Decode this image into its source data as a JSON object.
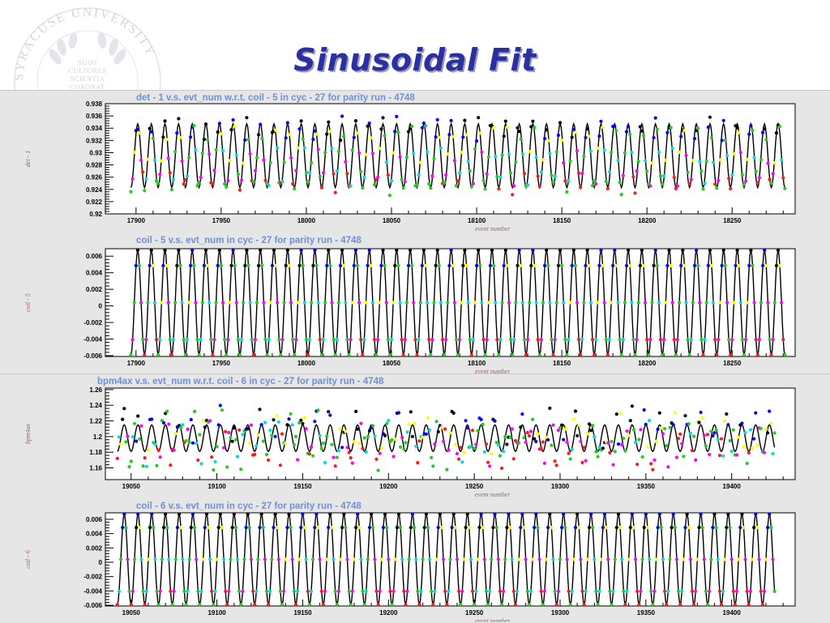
{
  "slide": {
    "title": "Sinusoidal Fit"
  },
  "logo": {
    "university_text": "SYRACUSE UNIVERSITY",
    "motto_lines": [
      "SUOS",
      "CULTORES",
      "SCIENTIA",
      "CORONAT"
    ]
  },
  "colors": {
    "title_text": "#2b2fa0",
    "chart_title": "#6f8fd8",
    "axis_label": "#a06060",
    "fit_line": "#000000",
    "marker_colors": [
      "#000000",
      "#ff1a1a",
      "#22cc22",
      "#0000ff",
      "#ffff00",
      "#ff00ff",
      "#00dddd"
    ]
  },
  "chart_data": [
    {
      "type": "scatter",
      "title": "det - 1 v.s. evt_num w.r.t. coil - 5 in cyc - 27 for parity run - 4748",
      "xlabel": "event number",
      "ylabel": "det - 1",
      "xlim": [
        17882,
        18287
      ],
      "ylim": [
        0.92,
        0.938
      ],
      "xticks": [
        17900,
        17950,
        18000,
        18050,
        18100,
        18150,
        18200,
        18250
      ],
      "yticks": [
        "0.92",
        "0.922",
        "0.924",
        "0.926",
        "0.928",
        "0.93",
        "0.932",
        "0.934",
        "0.936",
        "0.938"
      ],
      "fit": {
        "shape": "sinusoid",
        "x_start": 17897,
        "x_end": 18281,
        "period": 8,
        "center": 0.9295,
        "amplitude": 0.0052
      },
      "points": {
        "cycle": 8,
        "spread": 0.0013,
        "center": 0.9295,
        "amplitude": 0.0052
      }
    },
    {
      "type": "scatter",
      "title": "coil - 5 v.s. evt_num in cyc - 27 for parity run - 4748",
      "xlabel": "event number",
      "ylabel": "coil - 5",
      "xlim": [
        17882,
        18287
      ],
      "ylim": [
        -0.0061,
        0.0069
      ],
      "xticks": [
        17900,
        17950,
        18000,
        18050,
        18100,
        18150,
        18200,
        18250
      ],
      "yticks": [
        "-0.006",
        "-0.004",
        "-0.002",
        "0",
        "0.002",
        "0.004",
        "0.006"
      ],
      "fit": {
        "shape": "sinusoid",
        "x_start": 17897,
        "x_end": 18281,
        "period": 8,
        "center": 0.0004,
        "amplitude": 0.0063
      },
      "points": {
        "cycle": 8,
        "spread": 0,
        "center": 0.0004,
        "amplitude": 0.0063
      }
    },
    {
      "type": "scatter",
      "title": "bpm4ax v.s. evt_num w.r.t. coil - 6 in cyc - 27 for parity run - 4748",
      "xlabel": "event number",
      "ylabel": "bpm4ax",
      "xlim": [
        19035,
        19437
      ],
      "ylim": [
        1.145,
        1.262
      ],
      "xticks": [
        19050,
        19100,
        19150,
        19200,
        19250,
        19300,
        19350,
        19400
      ],
      "yticks": [
        "1.16",
        "1.18",
        "1.2",
        "1.22",
        "1.24",
        "1.26"
      ],
      "fit": {
        "shape": "sinusoid",
        "x_start": 19042,
        "x_end": 19425,
        "period": 8,
        "center": 1.198,
        "amplitude": 0.017
      },
      "points": {
        "cycle": 8,
        "spread": 0.025,
        "center": 1.198,
        "amplitude": 0.017
      }
    },
    {
      "type": "scatter",
      "title": "coil - 6 v.s. evt_num in cyc - 27 for parity run - 4748",
      "xlabel": "event number",
      "ylabel": "coil - 6",
      "xlim": [
        19035,
        19437
      ],
      "ylim": [
        -0.0061,
        0.0069
      ],
      "xticks": [
        19050,
        19100,
        19150,
        19200,
        19250,
        19300,
        19350,
        19400
      ],
      "yticks": [
        "-0.006",
        "-0.004",
        "-0.002",
        "0",
        "0.002",
        "0.004",
        "0.006"
      ],
      "fit": {
        "shape": "sinusoid",
        "x_start": 19042,
        "x_end": 19425,
        "period": 8,
        "center": 0.0004,
        "amplitude": 0.0063
      },
      "points": {
        "cycle": 8,
        "spread": 0,
        "center": 0.0004,
        "amplitude": 0.0063
      }
    }
  ]
}
